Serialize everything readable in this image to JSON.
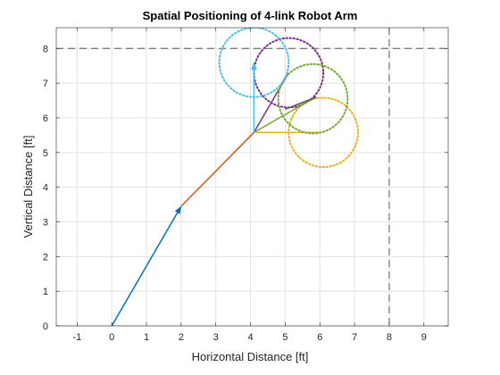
{
  "chart_data": {
    "type": "line",
    "title": "Spatial Positioning of 4-link Robot Arm",
    "xlabel": "Horizontal Distance [ft]",
    "ylabel": "Vertical Distance [ft]",
    "xlim": [
      -1.6,
      9.7
    ],
    "ylim": [
      0,
      8.6
    ],
    "xticks": [
      -1,
      0,
      1,
      2,
      3,
      4,
      5,
      6,
      7,
      8,
      9
    ],
    "yticks": [
      0,
      1,
      2,
      3,
      4,
      5,
      6,
      7,
      8
    ],
    "grid": true,
    "limit_lines": {
      "x": 8,
      "y": 8,
      "color": "#555555",
      "style": "dashed"
    },
    "series": [
      {
        "kind": "arrow",
        "color": "#0072BD",
        "x": [
          0,
          2
        ],
        "y": [
          0,
          3.45
        ]
      },
      {
        "kind": "line",
        "color": "#D95319",
        "x": [
          2,
          4.1
        ],
        "y": [
          3.45,
          5.58
        ]
      },
      {
        "kind": "line",
        "color": "#EDB120",
        "x": [
          4.1,
          6.05
        ],
        "y": [
          5.58,
          5.58
        ]
      },
      {
        "kind": "circle",
        "color": "#EDB120",
        "center": [
          6.1,
          5.58
        ],
        "radius": 1.0
      },
      {
        "kind": "line",
        "color": "#7E2F8E",
        "x": [
          4.1,
          5.1
        ],
        "y": [
          5.58,
          7.3
        ]
      },
      {
        "kind": "circle",
        "color": "#7E2F8E",
        "center": [
          5.1,
          7.3
        ],
        "radius": 1.0
      },
      {
        "kind": "line",
        "color": "#77AC30",
        "x": [
          4.1,
          5.8
        ],
        "y": [
          5.58,
          6.55
        ]
      },
      {
        "kind": "circle",
        "color": "#77AC30",
        "center": [
          5.8,
          6.55
        ],
        "radius": 1.0
      },
      {
        "kind": "line",
        "color": "#555555",
        "x": [
          5.0,
          5.9
        ],
        "y": [
          6.25,
          6.6
        ]
      },
      {
        "kind": "arrow",
        "color": "#4DBEEE",
        "x": [
          4.1,
          4.1
        ],
        "y": [
          5.58,
          7.6
        ]
      },
      {
        "kind": "circle",
        "color": "#4DBEEE",
        "center": [
          4.1,
          7.6
        ],
        "radius": 1.0
      }
    ]
  }
}
